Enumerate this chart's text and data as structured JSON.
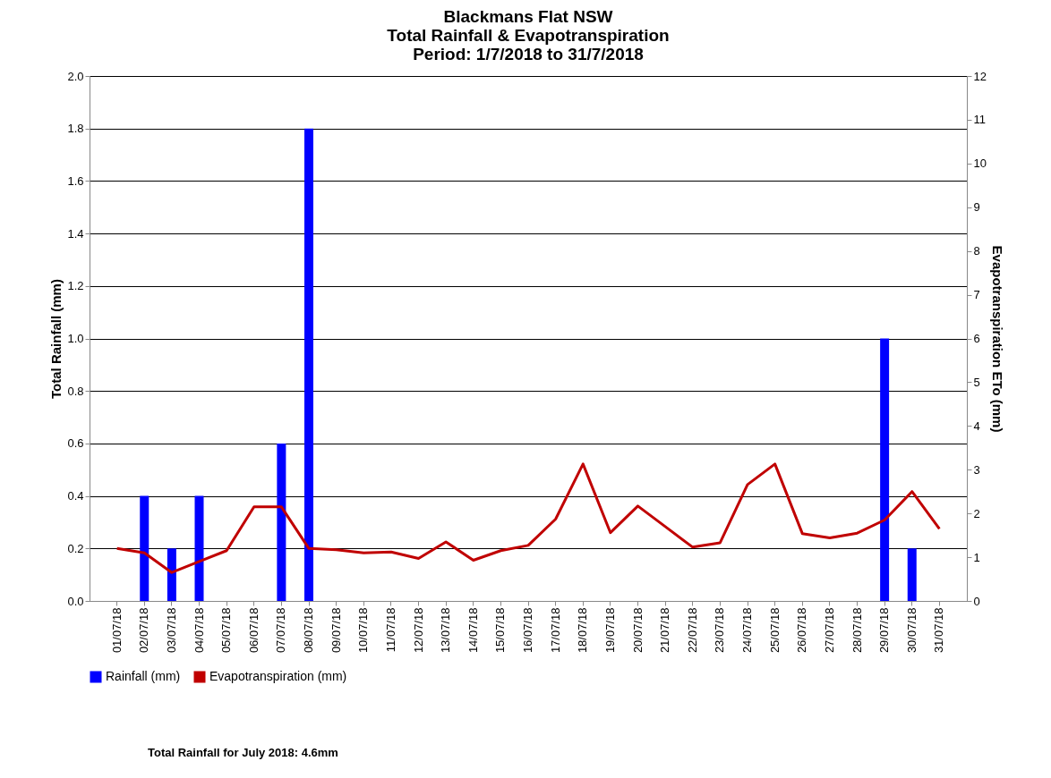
{
  "chart_data": {
    "type": "bar",
    "title": "Blackmans Flat NSW\nTotal Rainfall & Evapotranspiration\nPeriod: 1/7/2018 to 31/7/2018",
    "ylabel": "Total Rainfall (mm)",
    "y2label": "Evapotranspiration ETo (mm)",
    "categories": [
      "01/07/18",
      "02/07/18",
      "03/07/18",
      "04/07/18",
      "05/07/18",
      "06/07/18",
      "07/07/18",
      "08/07/18",
      "09/07/18",
      "10/07/18",
      "11/07/18",
      "12/07/18",
      "13/07/18",
      "14/07/18",
      "15/07/18",
      "16/07/18",
      "17/07/18",
      "18/07/18",
      "19/07/18",
      "20/07/18",
      "21/07/18",
      "22/07/18",
      "23/07/18",
      "24/07/18",
      "25/07/18",
      "26/07/18",
      "27/07/18",
      "28/07/18",
      "29/07/18",
      "30/07/18",
      "31/07/18"
    ],
    "series": [
      {
        "name": "Rainfall (mm)",
        "color": "#0000ff",
        "values": [
          0,
          0.4,
          0.2,
          0.4,
          0,
          0,
          0.6,
          1.8,
          0,
          0,
          0,
          0,
          0,
          0,
          0,
          0,
          0,
          0,
          0,
          0,
          0,
          0,
          0,
          0,
          0,
          0,
          0,
          0,
          1.0,
          0.2,
          0
        ]
      },
      {
        "name": "Evapotranspiration (mm)",
        "type": "line",
        "axis": "y2",
        "color": "#c00000",
        "values": [
          1.2,
          1.1,
          0.65,
          0.9,
          1.15,
          2.15,
          2.15,
          1.2,
          1.17,
          1.1,
          1.12,
          0.97,
          1.35,
          0.93,
          1.15,
          1.27,
          1.87,
          3.13,
          1.56,
          2.17,
          1.7,
          1.23,
          1.33,
          2.66,
          3.13,
          1.54,
          1.44,
          1.55,
          1.85,
          2.5,
          1.65
        ]
      }
    ],
    "ylim": [
      0,
      2.0
    ],
    "yticks": [
      {
        "value": 0,
        "label": "0.0"
      },
      {
        "value": 0.2,
        "label": "0.2"
      },
      {
        "value": 0.4,
        "label": "0.4"
      },
      {
        "value": 0.6,
        "label": "0.6"
      },
      {
        "value": 0.8,
        "label": "0.8"
      },
      {
        "value": 1.0,
        "label": "1.0"
      },
      {
        "value": 1.2,
        "label": "1.2"
      },
      {
        "value": 1.4,
        "label": "1.4"
      },
      {
        "value": 1.6,
        "label": "1.6"
      },
      {
        "value": 1.8,
        "label": "1.8"
      },
      {
        "value": 2.0,
        "label": "2.0"
      }
    ],
    "y2lim": [
      0,
      12
    ],
    "y2ticks": [
      0,
      1,
      2,
      3,
      4,
      5,
      6,
      7,
      8,
      9,
      10,
      11,
      12
    ],
    "grid": "y",
    "legend": "bottom",
    "annotations": [
      "Total Rainfall for July 2018: 4.6mm"
    ]
  }
}
